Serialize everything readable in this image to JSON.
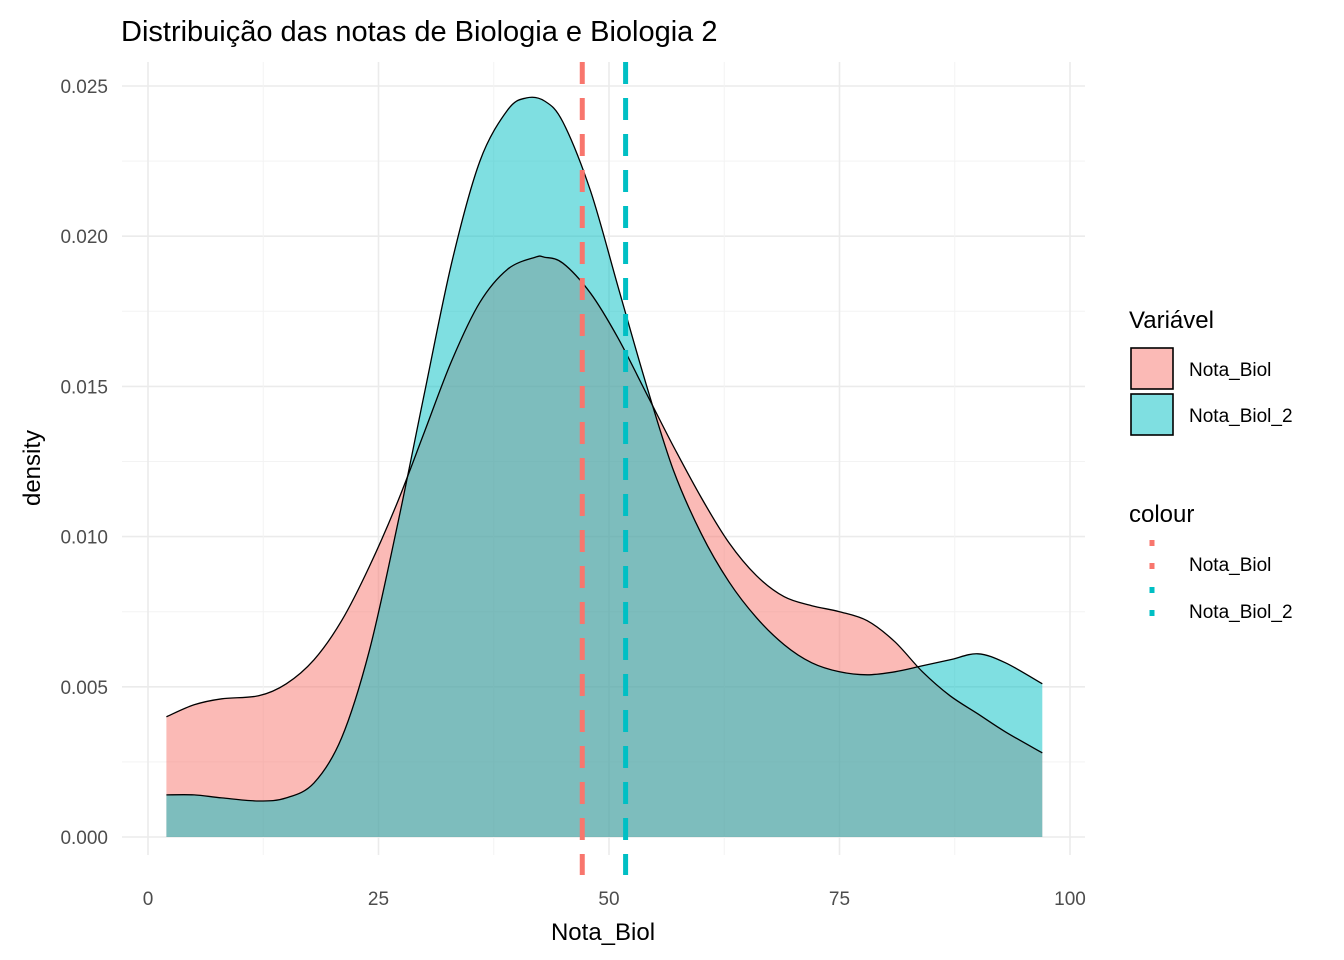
{
  "chart_data": {
    "type": "area",
    "title": "Distribuição das notas de Biologia e Biologia 2",
    "xlabel": "Nota_Biol",
    "ylabel": "density",
    "xlim": [
      0,
      100
    ],
    "ylim": [
      0,
      0.025
    ],
    "x_ticks": [
      0,
      25,
      50,
      75,
      100
    ],
    "x_tick_labels": [
      "0",
      "25",
      "50",
      "75",
      "100"
    ],
    "y_ticks": [
      0,
      0.005,
      0.01,
      0.015,
      0.02,
      0.025
    ],
    "y_tick_labels": [
      "0.000",
      "0.005",
      "0.010",
      "0.015",
      "0.020",
      "0.025"
    ],
    "grid": true,
    "legend_position": "right",
    "fill_legend": {
      "title": "Variável",
      "entries": [
        {
          "label": "Nota_Biol",
          "color": "#F8766D"
        },
        {
          "label": "Nota_Biol_2",
          "color": "#00BFC4"
        }
      ]
    },
    "colour_legend": {
      "title": "colour",
      "entries": [
        {
          "label": "Nota_Biol",
          "color": "#F8766D"
        },
        {
          "label": "Nota_Biol_2",
          "color": "#00BFC4"
        }
      ]
    },
    "series": [
      {
        "name": "Nota_Biol",
        "color": "#F8766D",
        "fill_opacity": 0.5,
        "x": [
          2,
          5,
          8,
          12,
          15,
          18,
          21,
          24,
          27,
          30,
          33,
          36,
          39,
          42,
          43,
          45,
          48,
          51,
          54,
          57,
          60,
          63,
          66,
          69,
          72,
          75,
          78,
          81,
          84,
          87,
          90,
          93,
          97
        ],
        "y": [
          0.004,
          0.0044,
          0.0046,
          0.0047,
          0.0051,
          0.0059,
          0.0072,
          0.009,
          0.0111,
          0.0135,
          0.0159,
          0.0178,
          0.0189,
          0.0193,
          0.0193,
          0.0191,
          0.0181,
          0.0166,
          0.0148,
          0.013,
          0.0113,
          0.0098,
          0.0087,
          0.008,
          0.0077,
          0.0075,
          0.0072,
          0.0065,
          0.0055,
          0.0047,
          0.0041,
          0.0035,
          0.0028
        ],
        "mean": 47.1
      },
      {
        "name": "Nota_Biol_2",
        "color": "#00BFC4",
        "fill_opacity": 0.5,
        "x": [
          2,
          5,
          8,
          12,
          15,
          18,
          21,
          24,
          27,
          30,
          33,
          36,
          39,
          41,
          43,
          45,
          48,
          51,
          54,
          57,
          60,
          63,
          66,
          69,
          72,
          75,
          78,
          81,
          84,
          87,
          90,
          93,
          97
        ],
        "y": [
          0.0014,
          0.0014,
          0.0013,
          0.0012,
          0.0013,
          0.0018,
          0.0033,
          0.0062,
          0.0103,
          0.0148,
          0.0192,
          0.0225,
          0.0242,
          0.0246,
          0.0245,
          0.0238,
          0.0215,
          0.0183,
          0.0151,
          0.0122,
          0.0101,
          0.0085,
          0.0073,
          0.0064,
          0.0058,
          0.0055,
          0.0054,
          0.0055,
          0.0057,
          0.0059,
          0.0061,
          0.0058,
          0.0051
        ],
        "mean": 51.8
      }
    ]
  }
}
